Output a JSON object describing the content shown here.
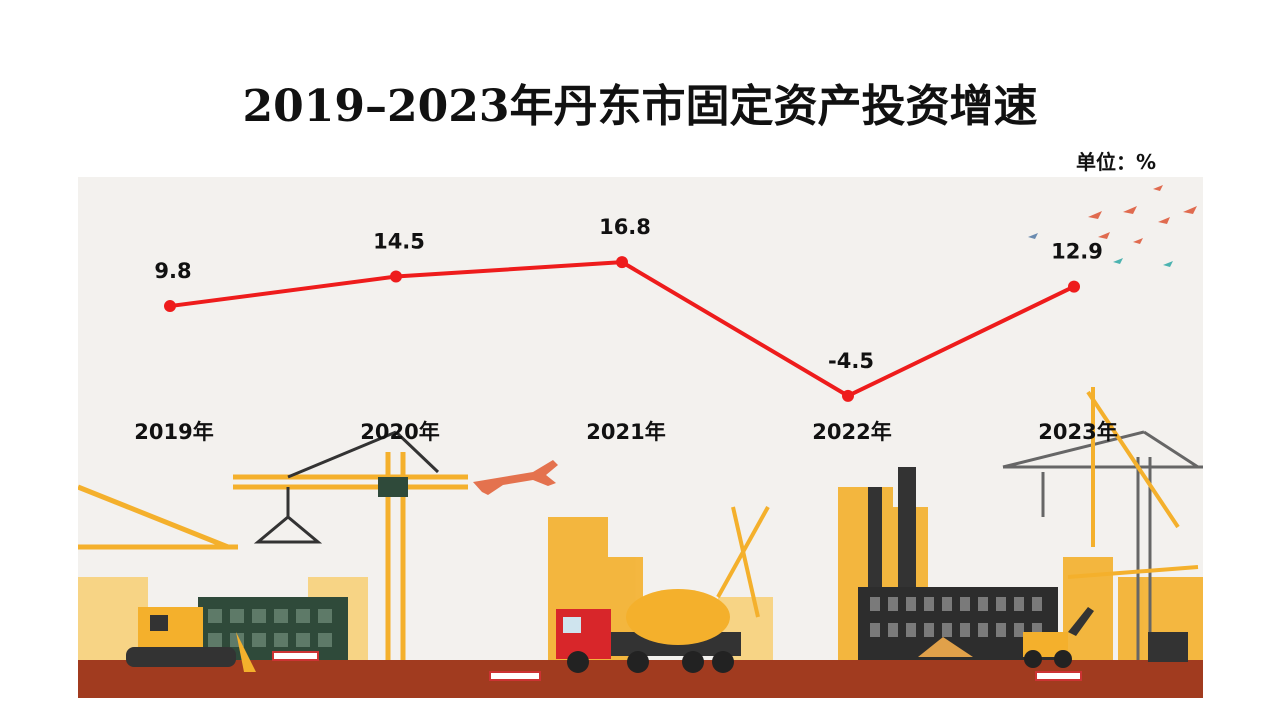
{
  "title": "2019–2023年丹东市固定资产投资增速",
  "unit": "单位：%",
  "colors": {
    "line": "#ee1c1c",
    "background": "#f3f1ee",
    "ground": "#a13b1f",
    "construction": "#f4b02c"
  },
  "chart_data": {
    "type": "line",
    "categories": [
      "2019年",
      "2020年",
      "2021年",
      "2022年",
      "2023年"
    ],
    "series": [
      {
        "values": [
          9.8,
          14.5,
          16.8,
          -4.5,
          12.9
        ]
      }
    ],
    "data_labels": [
      "9.8",
      "14.5",
      "16.8",
      "-4.5",
      "12.9"
    ],
    "ylim": [
      -5,
      20
    ],
    "grid": false,
    "legend": "none"
  }
}
